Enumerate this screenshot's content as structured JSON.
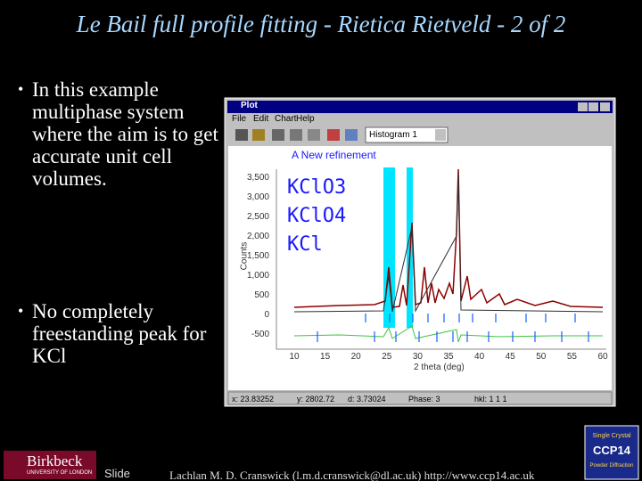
{
  "title": "Le Bail full profile fitting - Rietica Rietveld - 2 of 2",
  "bullets": [
    "In this example multiphase system where the aim is to get accurate unit cell volumes.",
    "No completely freestanding peak for KCl"
  ],
  "window": {
    "title": "Plot",
    "menu": [
      "File",
      "Edit",
      "Chart",
      "Help"
    ],
    "histogram": "Histogram 1",
    "plot": {
      "title": "A New refinement",
      "phases": [
        "KClO3",
        "KClO4",
        "KCl"
      ],
      "y_label": "Counts",
      "y_ticks": [
        "3,500",
        "3,000",
        "2,500",
        "2,000",
        "1,500",
        "1,000",
        "500",
        "0",
        "-500"
      ],
      "x_label": "2 theta (deg)",
      "x_ticks": [
        "10",
        "15",
        "20",
        "25",
        "30",
        "35",
        "40",
        "45",
        "50",
        "55",
        "60"
      ]
    },
    "status": [
      "x: 23.83252",
      "y: 2802.72",
      "d: 3.73024",
      "Phase: 3",
      "hkl: 1 1 1"
    ]
  },
  "footer": {
    "logo": "Birkbeck",
    "logo_sub": "UNIVERSITY OF LONDON",
    "slide": "Slide",
    "credit": "Lachlan M. D. Cranswick (l.m.d.cranswick@dl.ac.uk) http://www.ccp14.ac.uk",
    "ccp14": {
      "top": "Single Crystal",
      "name": "CCP14",
      "bottom": "Powder Diffraction"
    }
  }
}
